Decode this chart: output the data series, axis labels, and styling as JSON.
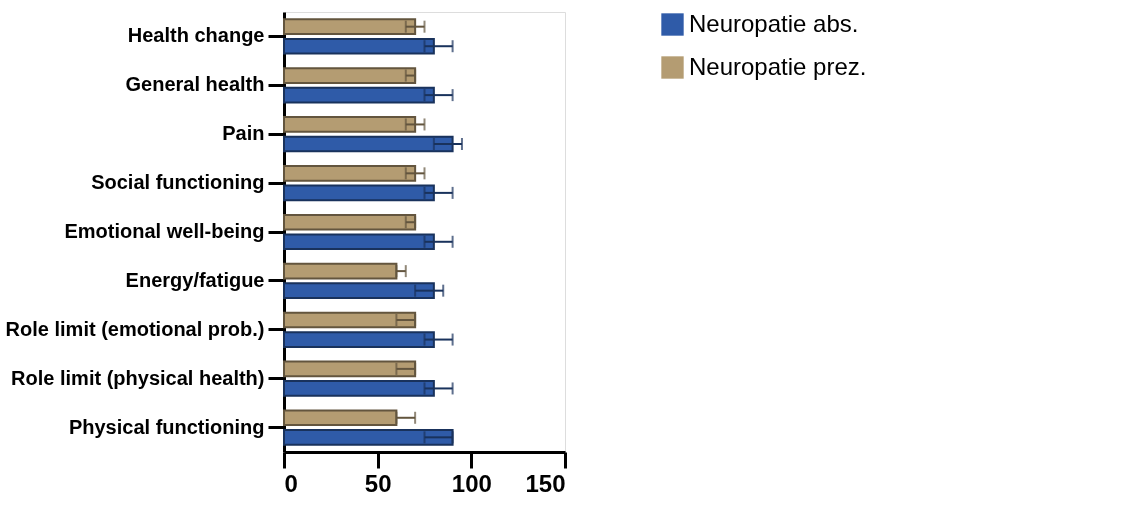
{
  "chart_data": {
    "type": "bar",
    "orientation": "horizontal",
    "categories": [
      "Health change",
      "General health",
      "Pain",
      "Social functioning",
      "Emotional well-being",
      "Energy/fatigue",
      "Role limit (emotional prob.)",
      "Role limit (physical health)",
      "Physical functioning"
    ],
    "series": [
      {
        "name": "Neuropatie abs.",
        "color": "#2f5ba8",
        "values": [
          80,
          80,
          90,
          80,
          80,
          80,
          80,
          80,
          90
        ],
        "errors": [
          [
            75,
            90
          ],
          [
            75,
            90
          ],
          [
            80,
            95
          ],
          [
            75,
            90
          ],
          [
            75,
            90
          ],
          [
            70,
            85
          ],
          [
            75,
            90
          ],
          [
            75,
            90
          ],
          [
            75,
            90
          ]
        ]
      },
      {
        "name": "Neuropatie prez.",
        "color": "#b49c72",
        "values": [
          70,
          70,
          70,
          70,
          70,
          60,
          70,
          70,
          60
        ],
        "errors": [
          [
            65,
            75
          ],
          [
            65,
            70
          ],
          [
            65,
            75
          ],
          [
            65,
            75
          ],
          [
            65,
            70
          ],
          [
            60,
            65
          ],
          [
            60,
            70
          ],
          [
            60,
            70
          ],
          [
            60,
            70
          ]
        ]
      }
    ],
    "xlim": [
      0,
      150
    ],
    "xticks": [
      0,
      50,
      100,
      150
    ],
    "grid": false,
    "legend": "top right"
  }
}
